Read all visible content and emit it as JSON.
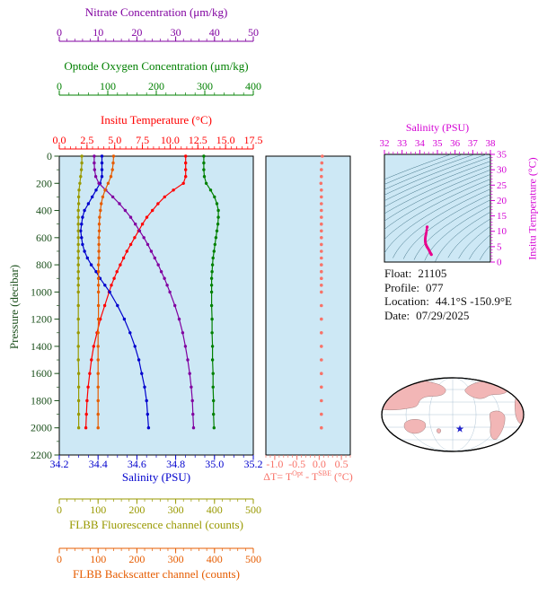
{
  "chart_data": {
    "type": "line",
    "profile_plot": {
      "background": "#cde8f5",
      "pressure_db": [
        0,
        50,
        100,
        150,
        200,
        250,
        300,
        350,
        400,
        450,
        500,
        550,
        600,
        650,
        700,
        750,
        800,
        850,
        900,
        950,
        1000,
        1100,
        1200,
        1300,
        1400,
        1500,
        1600,
        1700,
        1800,
        1900,
        2000
      ],
      "axes": {
        "pressure": {
          "title": "Pressure (decibar)",
          "range": [
            0,
            2200
          ],
          "ticks": [
            "0",
            "200",
            "400",
            "600",
            "800",
            "1000",
            "1200",
            "1400",
            "1600",
            "1800",
            "2000",
            "2200"
          ],
          "color": "#1c501c"
        },
        "nitrate": {
          "title": "Nitrate Concentration (μm/kg)",
          "range": [
            0,
            50
          ],
          "ticks": [
            "0",
            "10",
            "20",
            "30",
            "40",
            "50"
          ],
          "color": "#8000a0"
        },
        "oxygen": {
          "title": "Optode Oxygen Concentration (μm/kg)",
          "range": [
            0,
            400
          ],
          "ticks": [
            "0",
            "100",
            "200",
            "300",
            "400"
          ],
          "color": "#008000"
        },
        "temperature": {
          "title": "Insitu Temperature (°C)",
          "range": [
            0,
            17.5
          ],
          "ticks": [
            "0.0",
            "2.5",
            "5.0",
            "7.5",
            "10.0",
            "12.5",
            "15.0",
            "17.5"
          ],
          "color": "#ff0000"
        },
        "salinity": {
          "title": "Salinity (PSU)",
          "range": [
            34.2,
            35.2
          ],
          "ticks": [
            "34.2",
            "34.4",
            "34.6",
            "34.8",
            "35.0",
            "35.2"
          ],
          "color": "#0000cd"
        },
        "fluorescence": {
          "title": "FLBB Fluorescence channel (counts)",
          "range": [
            0,
            500
          ],
          "ticks": [
            "0",
            "100",
            "200",
            "300",
            "400",
            "500"
          ],
          "color": "#999900"
        },
        "backscatter": {
          "title": "FLBB Backscatter channel (counts)",
          "range": [
            0,
            500
          ],
          "ticks": [
            "0",
            "100",
            "200",
            "300",
            "400",
            "500"
          ],
          "color": "#e65c00"
        }
      },
      "series": [
        {
          "name": "Insitu Temperature",
          "axis": "temperature",
          "units": "°C",
          "color": "#ff0000",
          "values": [
            11.4,
            11.4,
            11.4,
            11.4,
            11.2,
            10.3,
            9.5,
            8.9,
            8.4,
            7.9,
            7.5,
            7.15,
            6.8,
            6.45,
            6.1,
            5.8,
            5.5,
            5.2,
            4.95,
            4.7,
            4.5,
            4.1,
            3.7,
            3.4,
            3.1,
            2.9,
            2.75,
            2.6,
            2.5,
            2.45,
            2.4
          ]
        },
        {
          "name": "Salinity",
          "axis": "salinity",
          "units": "PSU",
          "color": "#0000cd",
          "values": [
            34.42,
            34.42,
            34.42,
            34.42,
            34.41,
            34.39,
            34.37,
            34.35,
            34.33,
            34.32,
            34.315,
            34.31,
            34.315,
            34.32,
            34.33,
            34.345,
            34.365,
            34.39,
            34.41,
            34.435,
            34.46,
            34.5,
            34.535,
            34.565,
            34.59,
            34.61,
            34.625,
            34.64,
            34.65,
            34.655,
            34.66
          ]
        },
        {
          "name": "Nitrate Concentration",
          "axis": "nitrate",
          "units": "μm/kg",
          "color": "#8000a0",
          "values": [
            9,
            9,
            9.1,
            9.4,
            10.2,
            12,
            13.8,
            15.5,
            17,
            18.4,
            19.6,
            20.7,
            21.8,
            22.8,
            23.7,
            24.6,
            25.5,
            26.3,
            27.1,
            27.8,
            28.5,
            29.8,
            30.9,
            31.8,
            32.5,
            33.1,
            33.6,
            34,
            34.3,
            34.45,
            34.6
          ]
        },
        {
          "name": "Optode Oxygen Concentration",
          "axis": "oxygen",
          "units": "μm/kg",
          "color": "#008000",
          "values": [
            298,
            298,
            298,
            299,
            303,
            312,
            320,
            325,
            328,
            328,
            327,
            325,
            323,
            321,
            319,
            317,
            316,
            315,
            314,
            314,
            314,
            314,
            315,
            315,
            316,
            316,
            317,
            317,
            318,
            318,
            319
          ]
        },
        {
          "name": "FLBB Fluorescence channel",
          "axis": "fluorescence",
          "units": "counts",
          "color": "#999900",
          "values": [
            58,
            58,
            57,
            55,
            53,
            51,
            50,
            50,
            49,
            49,
            49,
            49,
            49,
            49,
            49,
            49,
            49,
            49,
            49,
            49,
            49,
            49,
            49,
            49,
            49,
            49,
            50,
            50,
            50,
            50,
            50
          ]
        },
        {
          "name": "FLBB Backscatter channel",
          "axis": "backscatter",
          "units": "counts",
          "color": "#e65c00",
          "values": [
            140,
            139,
            137,
            133,
            126,
            118,
            112,
            108,
            106,
            104,
            103,
            103,
            102,
            102,
            102,
            102,
            101,
            101,
            101,
            101,
            101,
            101,
            101,
            100,
            100,
            100,
            100,
            100,
            100,
            100,
            100
          ]
        }
      ]
    },
    "delta_plot": {
      "title_parts": {
        "t1": "ΔT= T",
        "sup1": "Opt",
        "t2": " - T",
        "sup2": "SBE",
        "t3": " (°C)"
      },
      "range": [
        -1.2,
        0.7
      ],
      "ticks": [
        "-1.0",
        "-0.5",
        "0.0",
        "0.5"
      ],
      "color": "#f87268",
      "values": [
        0.07,
        0.06,
        0.05,
        0.05,
        0.04,
        0.05,
        0.05,
        0.05,
        0.05,
        0.05,
        0.05,
        0.05,
        0.05,
        0.05,
        0.05,
        0.05,
        0.05,
        0.05,
        0.05,
        0.05,
        0.05,
        0.05,
        0.05,
        0.05,
        0.05,
        0.05,
        0.05,
        0.05,
        0.05,
        0.05,
        0.05
      ]
    },
    "ts_plot": {
      "salinity_axis": {
        "title": "Salinity (PSU)",
        "range": [
          32,
          38
        ],
        "ticks": [
          "32",
          "33",
          "34",
          "35",
          "36",
          "37",
          "38"
        ],
        "color": "#d400d4"
      },
      "temperature_axis": {
        "title": "Insitu Temperature (°C)",
        "range": [
          0,
          35
        ],
        "ticks": [
          "0",
          "5",
          "10",
          "15",
          "20",
          "25",
          "30",
          "35"
        ],
        "color": "#d400d4"
      },
      "profile_color": "#e8008c",
      "contour_color": "#3f7285",
      "sigma_levels": [
        20.5,
        21,
        21.5,
        22,
        22.5,
        23,
        23.5,
        24,
        24.5,
        25,
        25.5,
        26,
        26.5,
        27,
        27.5,
        28,
        28.5,
        29,
        29.5,
        30
      ]
    }
  },
  "info": {
    "float_label": "Float:",
    "float_value": "21105",
    "profile_label": "Profile:",
    "profile_value": "077",
    "location_label": "Location:",
    "location_value": "44.1°S -150.9°E",
    "date_label": "Date:",
    "date_value": "07/29/2025"
  },
  "map": {
    "ocean_color": "#ffffff",
    "land_color": "#f2b6b6",
    "graticule_color": "#9db8cc",
    "outline_color": "#000000",
    "star_color": "#2222cc"
  }
}
